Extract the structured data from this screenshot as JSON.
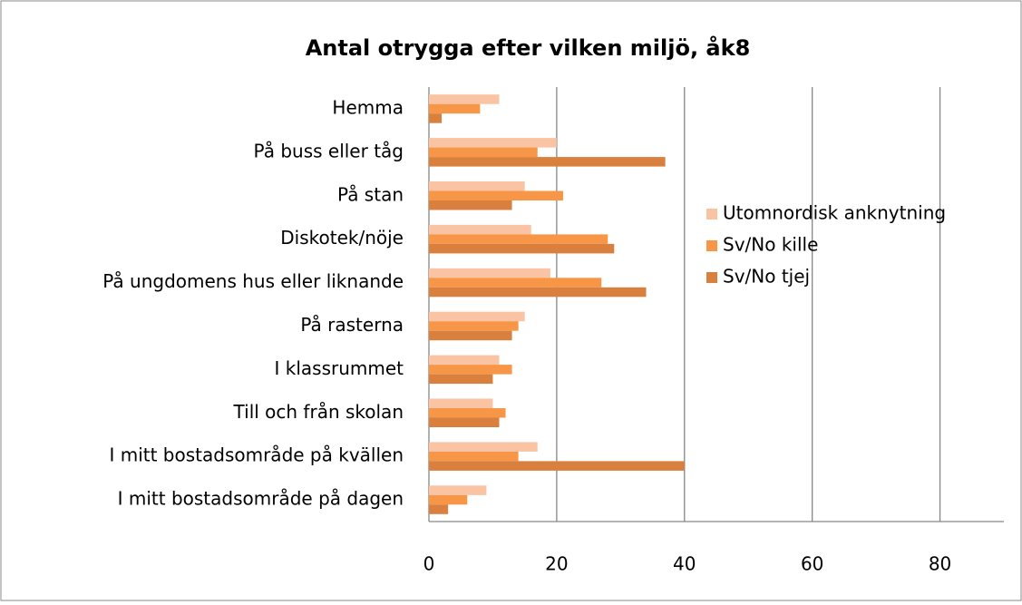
{
  "chart_data": {
    "type": "hbar",
    "title": "Antal otrygga efter vilken miljö, åk8",
    "categories": [
      "Hemma",
      "På buss eller tåg",
      "På stan",
      "Diskotek/nöje",
      "På ungdomens hus eller liknande",
      "På rasterna",
      "I klassrummet",
      "Till och från skolan",
      "I mitt bostadsområde på kvällen",
      "I mitt bostadsområde på dagen"
    ],
    "series": [
      {
        "name": "Utomnordisk anknytning",
        "color": "#fac3a3",
        "values": [
          11,
          20,
          15,
          16,
          19,
          15,
          11,
          10,
          17,
          9
        ]
      },
      {
        "name": "Sv/No kille",
        "color": "#f79646",
        "values": [
          8,
          17,
          21,
          28,
          27,
          14,
          13,
          12,
          14,
          6
        ]
      },
      {
        "name": "Sv/No tjej",
        "color": "#d9803e",
        "values": [
          2,
          37,
          13,
          29,
          34,
          13,
          10,
          11,
          40,
          3
        ]
      }
    ],
    "xlim": [
      0,
      90
    ],
    "xticks": [
      0,
      20,
      40,
      60,
      80
    ],
    "grid": true,
    "legend": "right"
  }
}
